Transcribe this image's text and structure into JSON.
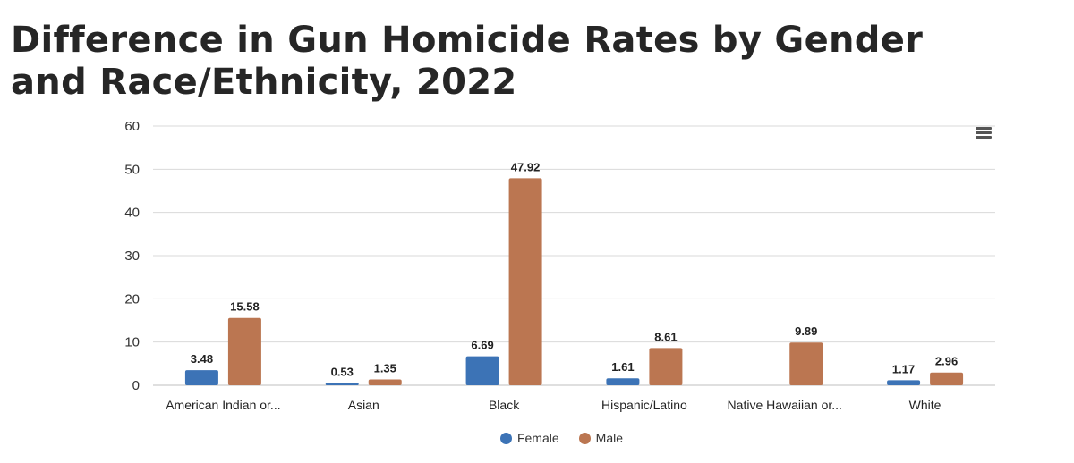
{
  "title": "Difference in Gun Homicide Rates by Gender and Race/Ethnicity, 2022",
  "colors": {
    "female": "#3c73b6",
    "male": "#bb7651",
    "grid": "#d9d9d9"
  },
  "menu_icon": "hamburger-menu-icon",
  "chart_data": {
    "type": "bar",
    "title": "Difference in Gun Homicide Rates by Gender and Race/Ethnicity, 2022",
    "xlabel": "",
    "ylabel": "",
    "ylim": [
      0,
      60
    ],
    "yticks": [
      0,
      10,
      20,
      30,
      40,
      50,
      60
    ],
    "grid": true,
    "legend_position": "bottom-center",
    "categories": [
      "American Indian or...",
      "Asian",
      "Black",
      "Hispanic/Latino",
      "Native Hawaiian or...",
      "White"
    ],
    "series": [
      {
        "name": "Female",
        "values": [
          3.48,
          0.53,
          6.69,
          1.61,
          null,
          1.17
        ],
        "labels": [
          "3.48",
          "0.53",
          "6.69",
          "1.61",
          null,
          "1.17"
        ]
      },
      {
        "name": "Male",
        "values": [
          15.58,
          1.35,
          47.92,
          8.61,
          9.89,
          2.96
        ],
        "labels": [
          "15.58",
          "1.35",
          "47.92",
          "8.61",
          "9.89",
          "2.96"
        ]
      }
    ]
  }
}
